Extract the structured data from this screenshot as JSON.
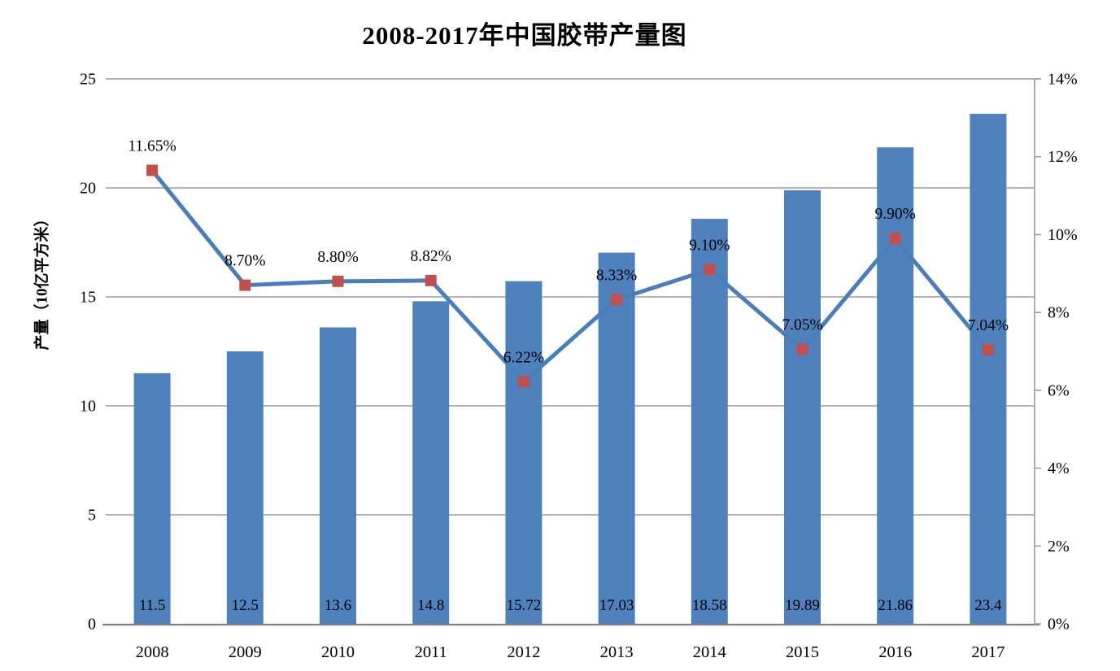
{
  "title": "2008-2017年中国胶带产量图",
  "chart_data": {
    "type": "bar",
    "combo": "bar+line",
    "title": "2008-2017年中国胶带产量图",
    "categories": [
      "2008",
      "2009",
      "2010",
      "2011",
      "2012",
      "2013",
      "2014",
      "2015",
      "2016",
      "2017"
    ],
    "series": [
      {
        "type": "bar",
        "axis": "left",
        "values": [
          11.5,
          12.5,
          13.6,
          14.8,
          15.72,
          17.03,
          18.58,
          19.89,
          21.86,
          23.4
        ],
        "labels": [
          "11.5",
          "12.5",
          "13.6",
          "14.8",
          "15.72",
          "17.03",
          "18.58",
          "19.89",
          "21.86",
          "23.4"
        ]
      },
      {
        "type": "line",
        "axis": "right",
        "values": [
          11.65,
          8.7,
          8.8,
          8.82,
          6.22,
          8.33,
          9.1,
          7.05,
          9.9,
          7.04
        ],
        "labels": [
          "11.65%",
          "8.70%",
          "8.80%",
          "8.82%",
          "6.22%",
          "8.33%",
          "9.10%",
          "7.05%",
          "9.90%",
          "7.04%"
        ]
      }
    ],
    "left_axis": {
      "label": "产量（10亿平方米）",
      "min": 0,
      "max": 25,
      "ticks": [
        0,
        5,
        10,
        15,
        20,
        25
      ],
      "tick_labels": [
        "0",
        "5",
        "10",
        "15",
        "20",
        "25"
      ]
    },
    "right_axis": {
      "min": 0,
      "max": 14,
      "ticks": [
        0,
        2,
        4,
        6,
        8,
        10,
        12,
        14
      ],
      "tick_labels": [
        "0%",
        "2%",
        "4%",
        "6%",
        "8%",
        "10%",
        "12%",
        "14%"
      ]
    },
    "grid": true,
    "legend": "none",
    "colors": {
      "bar": "#4f81bd",
      "line": "#4a7ebb",
      "marker": "#c0504d",
      "gridline": "#9b9b9b",
      "axis_line": "#808080",
      "text": "#000000"
    }
  }
}
